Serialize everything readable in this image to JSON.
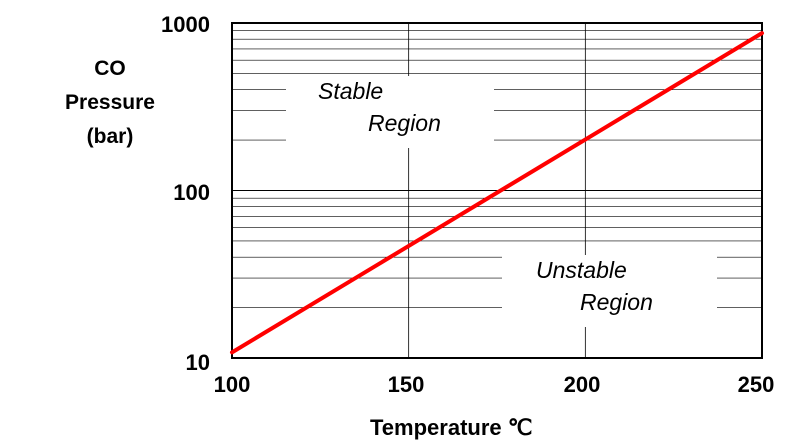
{
  "chart_data": {
    "type": "line",
    "x": [
      100,
      250
    ],
    "series": [
      {
        "values": [
          10.8,
          870
        ],
        "color": "#ff0000"
      }
    ],
    "xlabel": "Temperature ℃",
    "ylabel_lines": [
      "CO",
      "Pressure",
      "(bar)"
    ],
    "x_ticks": [
      "100",
      "150",
      "200",
      "250"
    ],
    "y_ticks": [
      "10",
      "100",
      "1000"
    ],
    "xlim": [
      100,
      250
    ],
    "ylim": [
      10,
      1000
    ],
    "y_scale": "log",
    "grid": true,
    "annotations": {
      "stable": [
        "Stable",
        "Region"
      ],
      "unstable": [
        "Unstable",
        "Region"
      ]
    }
  }
}
